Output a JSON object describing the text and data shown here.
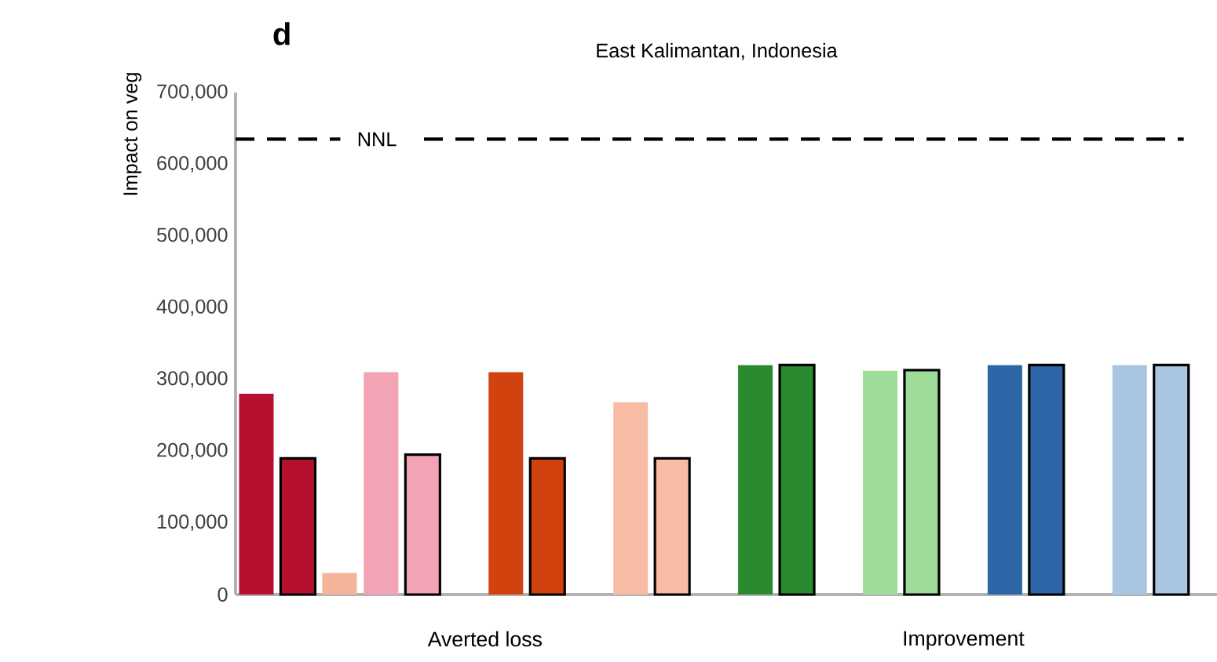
{
  "chart_data": {
    "type": "bar",
    "title": "East Kalimantan, Indonesia",
    "ylabel": "Impact on veg",
    "categories": [
      null,
      null,
      null,
      null,
      null,
      null,
      null,
      null,
      null,
      null,
      null,
      null,
      null,
      null,
      null,
      null,
      null,
      null,
      null,
      null,
      null,
      null,
      null
    ],
    "series": [
      {
        "values": [
          280000,
          null,
          30000,
          310000,
          null,
          null,
          310000,
          null,
          null,
          268000,
          null,
          null,
          320000,
          null,
          null,
          312000,
          null,
          null,
          320000,
          null,
          null,
          320000,
          null
        ],
        "colors": [
          "#b5102e",
          null,
          "#f4b49a",
          "#f2a3b4",
          null,
          null,
          "#d2420f",
          null,
          null,
          "#f8bca4",
          null,
          null,
          "#2a8a2f",
          null,
          null,
          "#9fdc9a",
          null,
          null,
          "#2c66a6",
          null,
          null,
          "#a9c5e2",
          null
        ]
      },
      {
        "values": [
          null,
          190000,
          null,
          null,
          195000,
          null,
          null,
          190000,
          null,
          null,
          190000,
          null,
          null,
          320000,
          null,
          null,
          313000,
          null,
          null,
          320000,
          null,
          null,
          320000
        ],
        "colors": [
          null,
          "#b5102e",
          null,
          null,
          "#f2a3b4",
          null,
          null,
          "#d2420f",
          null,
          null,
          "#f8bca4",
          null,
          null,
          "#2a8a2f",
          null,
          null,
          "#9fdc9a",
          null,
          null,
          "#2c66a6",
          null,
          null,
          "#a9c5e2"
        ]
      }
    ],
    "ylim": [
      0,
      700000
    ],
    "yticks": [
      {
        "value": 0,
        "label": "0"
      },
      {
        "value": 100000,
        "label": "100,000"
      },
      {
        "value": 200000,
        "label": "200,000"
      },
      {
        "value": 300000,
        "label": "300,000"
      },
      {
        "value": 400000,
        "label": "400,000"
      },
      {
        "value": 500000,
        "label": "500,000"
      },
      {
        "value": 600000,
        "label": "600,000"
      },
      {
        "value": 700000,
        "label": "700,000"
      }
    ],
    "ref_lines": [
      {
        "axis": "y",
        "value": 635000,
        "label": "NNL",
        "color": "#000000",
        "line_style": "dashed"
      }
    ],
    "annotations": [
      "d",
      "Averted loss",
      "Improvement"
    ],
    "grid": false
  }
}
